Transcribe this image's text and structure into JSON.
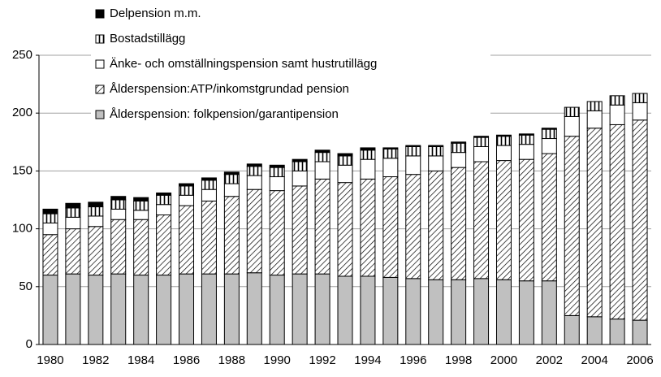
{
  "chart_data": {
    "type": "stacked_bar",
    "categories": [
      "1980",
      null,
      "1982",
      null,
      "1984",
      null,
      "1986",
      null,
      "1988",
      null,
      "1990",
      null,
      "1992",
      null,
      "1994",
      null,
      "1996",
      null,
      "1998",
      null,
      "2000",
      null,
      "2002",
      null,
      "2004",
      null,
      "2006"
    ],
    "series": [
      {
        "name": "Ålderspension: folkpension/garantipension",
        "color": "#c0c0c0",
        "hatch": "none",
        "values": [
          60,
          61,
          60,
          61,
          60,
          60,
          61,
          61,
          61,
          62,
          60,
          61,
          61,
          59,
          59,
          58,
          57,
          56,
          56,
          57,
          56,
          55,
          55,
          25,
          24,
          22,
          21
        ]
      },
      {
        "name": "Ålderspension:ATP/inkomstgrundad pension",
        "color": "#ffffff",
        "hatch": "diagonal",
        "values": [
          35,
          39,
          42,
          47,
          48,
          52,
          59,
          63,
          67,
          72,
          73,
          76,
          82,
          81,
          84,
          87,
          90,
          94,
          97,
          101,
          103,
          105,
          110,
          155,
          163,
          168,
          173
        ]
      },
      {
        "name": "Änke- och omställningspension samt hustrutillägg",
        "color": "#ffffff",
        "hatch": "none",
        "values": [
          10,
          10,
          9,
          9,
          8,
          9,
          9,
          10,
          11,
          12,
          12,
          13,
          15,
          15,
          17,
          16,
          16,
          13,
          13,
          13,
          13,
          13,
          13,
          17,
          15,
          17,
          15
        ]
      },
      {
        "name": "Bostadstillägg",
        "color": "#ffffff",
        "hatch": "vertical",
        "values": [
          8,
          8,
          8,
          8,
          8,
          8,
          8,
          8,
          8,
          8,
          8,
          8,
          8,
          8,
          8,
          8,
          8,
          8,
          8,
          8,
          8,
          8,
          8,
          8,
          8,
          8,
          8
        ]
      },
      {
        "name": "Delpension m.m.",
        "color": "#000000",
        "hatch": "none",
        "values": [
          4,
          4,
          4,
          3,
          3,
          2,
          2,
          2,
          2,
          2,
          2,
          2,
          2,
          2,
          2,
          1,
          1,
          1,
          1,
          1,
          1,
          1,
          1,
          0,
          0,
          0,
          0
        ]
      }
    ],
    "ylim": [
      0,
      250
    ],
    "yticks": [
      0,
      50,
      100,
      150,
      200,
      250
    ],
    "grid": true
  }
}
